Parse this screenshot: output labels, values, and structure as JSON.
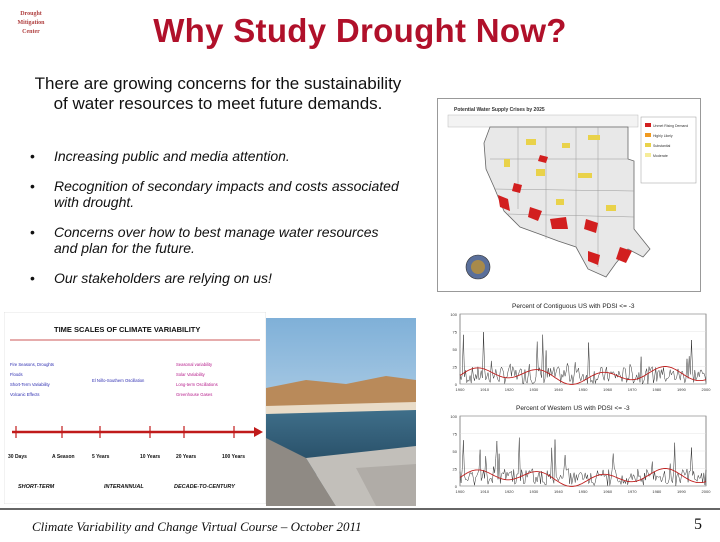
{
  "logo": {
    "line1": "Drought Mitigation",
    "line2": "Center"
  },
  "title": "Why Study Drought Now?",
  "intro": "There are growing concerns for the sustainability of water resources to meet future demands.",
  "bullets": [
    "Increasing public and media attention.",
    "Recognition of secondary impacts and costs associated with drought.",
    "Concerns over how to best manage water resources and plan for the future.",
    "Our stakeholders are relying on us!"
  ],
  "map": {
    "title": "Potential Water Supply Crises by 2025",
    "legend": [
      "Unmet Rising Demand",
      "Highly Likely",
      "Substantial",
      "Moderate"
    ]
  },
  "timescales": {
    "title": "TIME SCALES OF CLIMATE VARIABILITY",
    "left_items": [
      "Fire Seasons, Droughts",
      "Floods",
      "Short-Term Variability",
      "Volcanic Effects"
    ],
    "mid_items": [
      "El Niño-Southern Oscillation"
    ],
    "right_items": [
      "Seasonal variability",
      "Solar Variability",
      "Long-term Oscillations",
      "Greenhouse Gases"
    ],
    "ticks": [
      "30 Days",
      "A Season",
      "5 Years",
      "10 Years",
      "20 Years",
      "100 Years"
    ],
    "eras": [
      "SHORT-TERM",
      "INTERANNUAL",
      "DECADE-TO-CENTURY"
    ]
  },
  "charts": {
    "top_title": "Percent of Contiguous US with PDSI <= -3",
    "bottom_title": "Percent of Western US with PDSI <= -3",
    "y_ticks": [
      "100",
      "75",
      "50",
      "25",
      "0"
    ],
    "x_ticks": [
      "1900",
      "1910",
      "1920",
      "1930",
      "1940",
      "1950",
      "1960",
      "1970",
      "1980",
      "1990",
      "2000"
    ],
    "colors": {
      "raw": "#333333",
      "smooth": "#c0201f"
    }
  },
  "footer": "Climate Variability and Change Virtual Course – October 2011",
  "page_number": "5",
  "colors": {
    "title": "#b0102a"
  }
}
